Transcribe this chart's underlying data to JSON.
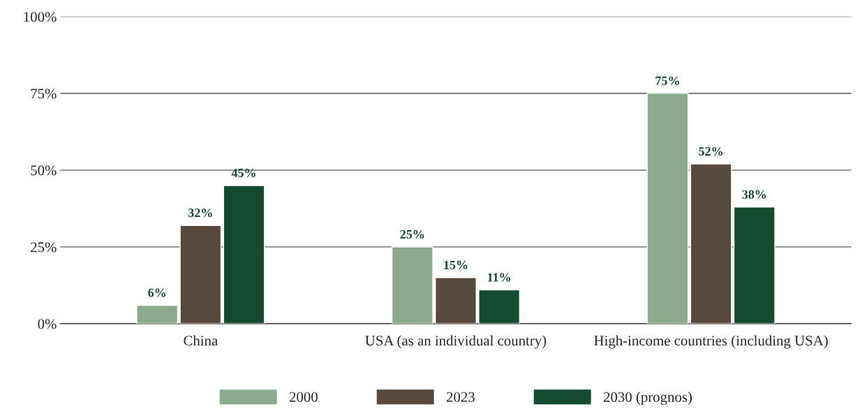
{
  "chart_data": {
    "type": "bar",
    "categories": [
      "China",
      "USA (as an individual country)",
      "High-income countries (including USA)"
    ],
    "series": [
      {
        "name": "2000",
        "color": "#8caa8c",
        "values": [
          6,
          25,
          75
        ],
        "value_labels": [
          "6%",
          "25%",
          "75%"
        ]
      },
      {
        "name": "2023",
        "color": "#574a3c",
        "values": [
          32,
          15,
          52
        ],
        "value_labels": [
          "32%",
          "15%",
          "52%"
        ]
      },
      {
        "name": "2030 (prognos)",
        "color": "#144a32",
        "values": [
          45,
          11,
          38
        ],
        "value_labels": [
          "45%",
          "11%",
          "38%"
        ]
      }
    ],
    "ylim": [
      0,
      100
    ],
    "yticks": [
      {
        "value": 0,
        "label": "0%"
      },
      {
        "value": 25,
        "label": "25%"
      },
      {
        "value": 50,
        "label": "50%"
      },
      {
        "value": 75,
        "label": "75%"
      },
      {
        "value": 100,
        "label": "100%"
      }
    ],
    "grid": "y",
    "legend": "bottom"
  }
}
